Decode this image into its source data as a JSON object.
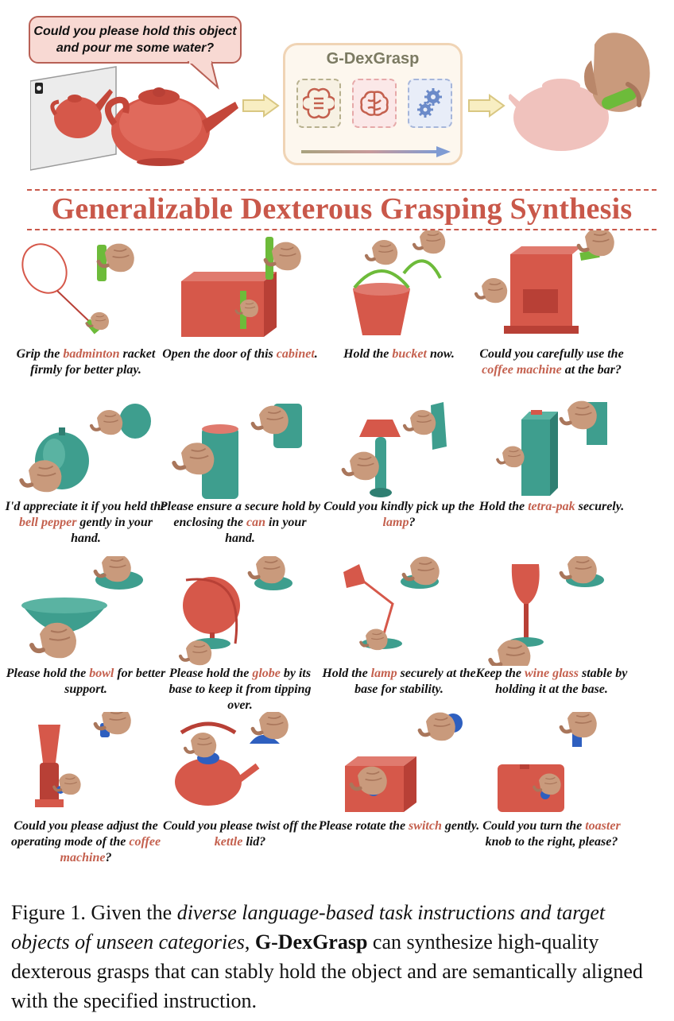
{
  "banner": {
    "prompt": "Could you please hold this object and pour me some water?",
    "model_name": "G-DexGrasp"
  },
  "heading": "Generalizable Dexterous Grasping Synthesis",
  "cells": [
    {
      "pre": "Grip the ",
      "hl": "badminton",
      "post": " racket firmly for better play."
    },
    {
      "pre": "Open the door of this ",
      "hl": "cabinet",
      "post": "."
    },
    {
      "pre": "Hold the ",
      "hl": "bucket",
      "post": " now."
    },
    {
      "pre": "Could you carefully use the ",
      "hl": "coffee machine",
      "post": " at the bar?"
    },
    {
      "pre": "I'd appreciate it if you held the ",
      "hl": "bell pepper",
      "post": " gently in your hand."
    },
    {
      "pre": "Please ensure a secure hold by enclosing the ",
      "hl": "can",
      "post": " in your hand."
    },
    {
      "pre": "Could you kindly pick up the ",
      "hl": "lamp",
      "post": "?"
    },
    {
      "pre": "Hold the ",
      "hl": "tetra-pak",
      "post": " securely."
    },
    {
      "pre": "Please hold the ",
      "hl": "bowl",
      "post": " for better support."
    },
    {
      "pre": "Please hold the ",
      "hl": "globe",
      "post": " by its base to keep it from tipping over."
    },
    {
      "pre": "Hold the ",
      "hl": "lamp",
      "post": " securely at the base for stability."
    },
    {
      "pre": "Keep the ",
      "hl": "wine glass",
      "post": " stable by holding it at the base."
    },
    {
      "pre": "Could you please adjust the operating mode of the ",
      "hl": "coffee machine",
      "post": "?"
    },
    {
      "pre": "Could you please twist off the ",
      "hl": "kettle",
      "post": " lid?"
    },
    {
      "pre": "Please rotate the ",
      "hl": "switch",
      "post": " gently."
    },
    {
      "pre": "Could you turn the ",
      "hl": "toaster",
      "post": " knob to the right, please?"
    }
  ],
  "figure_caption": {
    "label": "Figure 1. Given the ",
    "italic": "diverse language-based task instructions and target objects of unseen categories",
    "mid": ", ",
    "bold": "G-DexGrasp",
    "end": " can synthesize high-quality dexterous grasps that can stably hold the object and are semantically aligned with the specified instruction."
  },
  "colors": {
    "accent": "#c9584a",
    "object_red": "#d6584a",
    "object_teal": "#3e9e8e",
    "hand": "#c99a7c",
    "grasp_green": "#6dbb3a",
    "cap_blue": "#2e5fbf"
  }
}
